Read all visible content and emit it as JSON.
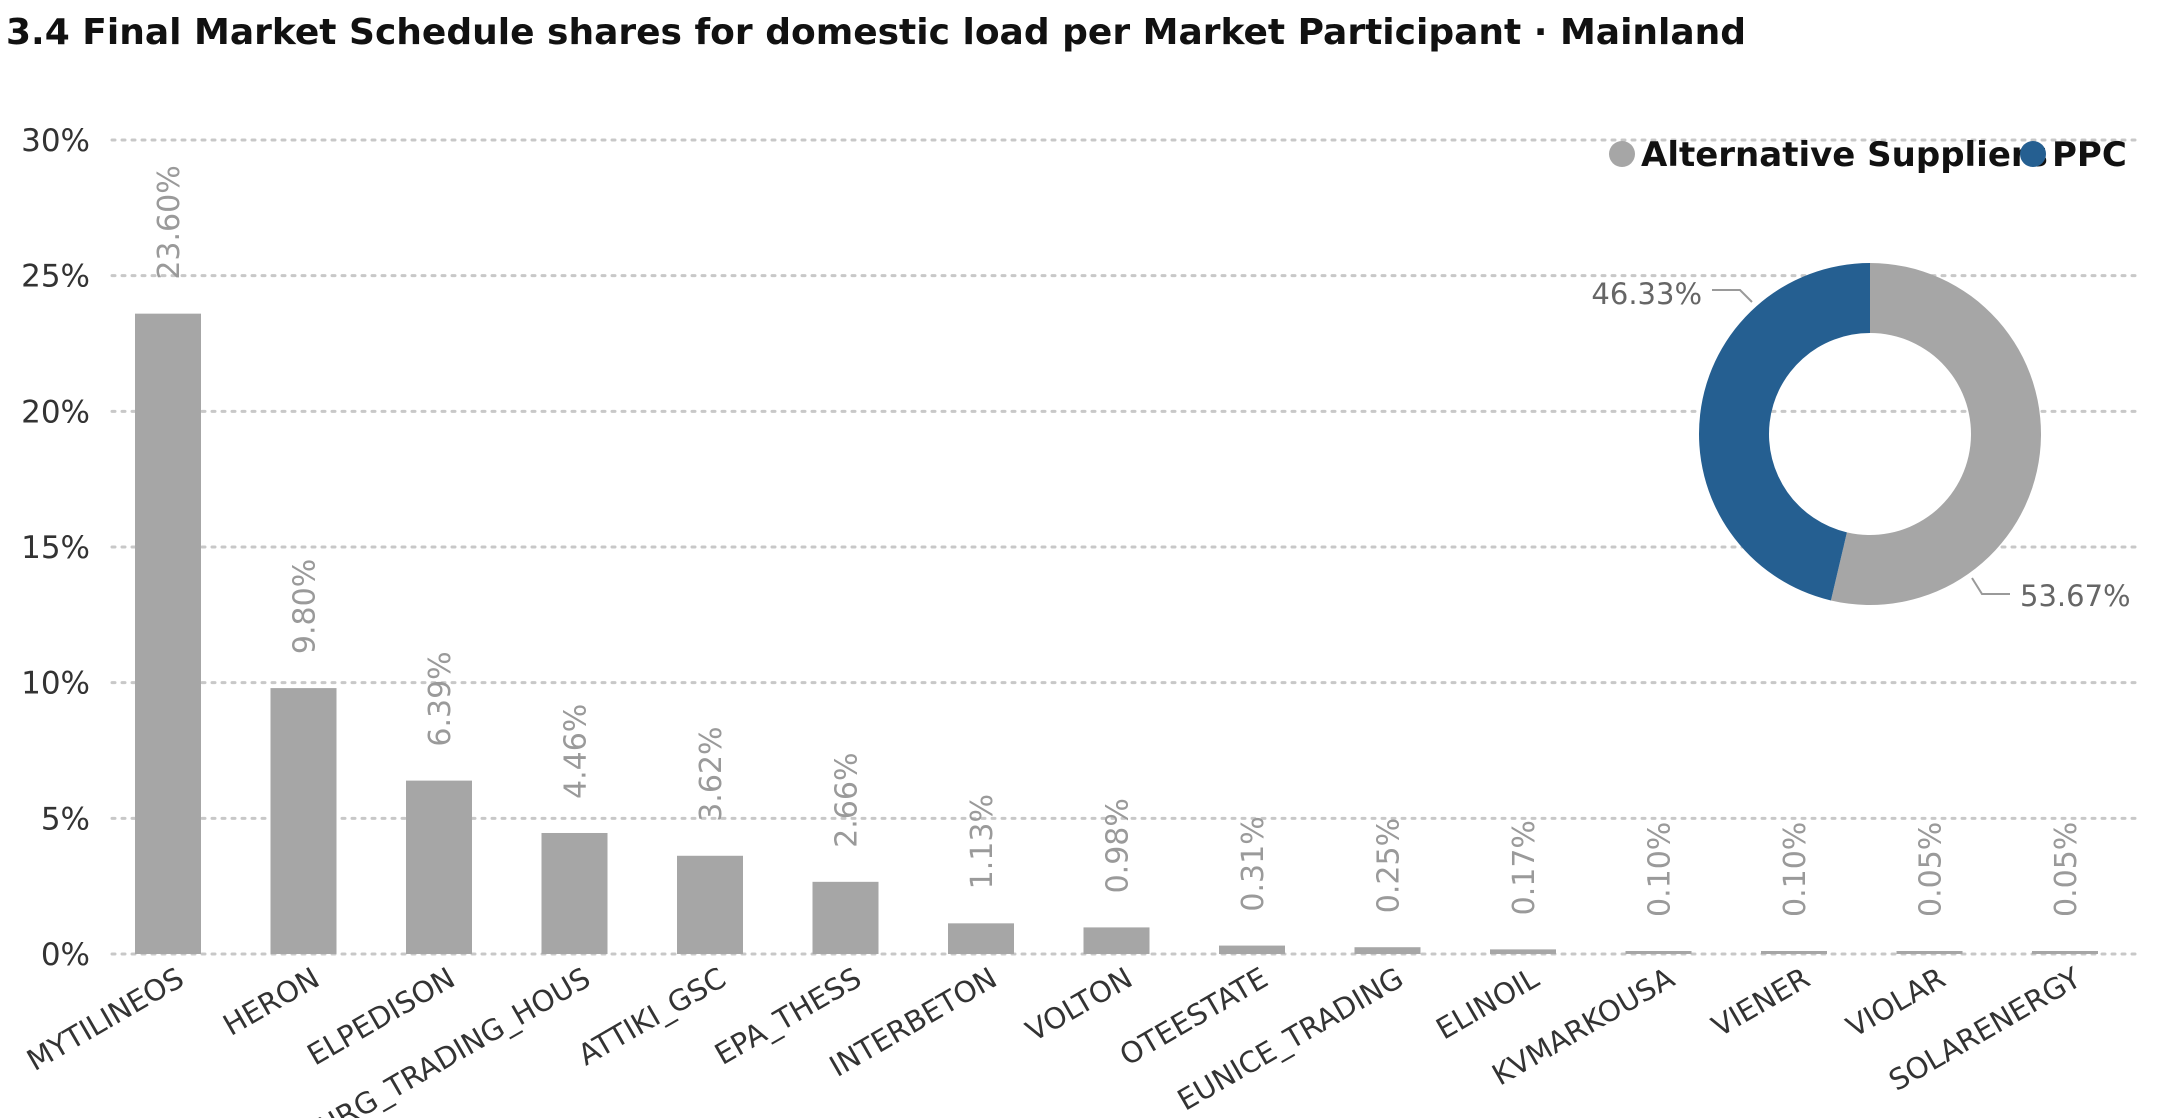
{
  "title": "3.4 Final Market Schedule shares for  domestic load per Market Participant · Mainland",
  "colors": {
    "bar": "#a6a6a6",
    "alternative_suppliers": "#a6a6a6",
    "ppc": "#255f91",
    "grid": "#c8c8c8"
  },
  "chart_data": [
    {
      "type": "bar",
      "categories": [
        "MYTILINEOS",
        "HERON",
        "ELPEDISON",
        "NRG_TRADING_HOUS",
        "ATTIKI_GSC",
        "EPA_THESS",
        "INTERBETON",
        "VOLTON",
        "OTEESTATE",
        "EUNICE_TRADING",
        "ELINOIL",
        "KVMARKOUSA",
        "VIENER",
        "VIOLAR",
        "SOLARENERGY"
      ],
      "values": [
        23.6,
        9.8,
        6.39,
        4.46,
        3.62,
        2.66,
        1.13,
        0.98,
        0.31,
        0.25,
        0.17,
        0.1,
        0.1,
        0.05,
        0.05
      ],
      "data_labels": [
        "23.60%",
        "9.80%",
        "6.39%",
        "4.46%",
        "3.62%",
        "2.66%",
        "1.13%",
        "0.98%",
        "0.31%",
        "0.25%",
        "0.17%",
        "0.10%",
        "0.10%",
        "0.05%",
        "0.05%"
      ],
      "ylim": [
        0,
        30
      ],
      "yticks": [
        0,
        5,
        10,
        15,
        20,
        25,
        30
      ],
      "ytick_labels": [
        "0%",
        "5%",
        "10%",
        "15%",
        "20%",
        "25%",
        "30%"
      ],
      "grid": true
    },
    {
      "type": "pie",
      "donut": true,
      "slices": [
        {
          "name": "Alternative Suppliers",
          "value": 53.67,
          "label": "53.67%"
        },
        {
          "name": "PPC",
          "value": 46.33,
          "label": "46.33%"
        }
      ],
      "legend": [
        "Alternative Suppliers",
        "PPC"
      ],
      "legend_position": "top-right"
    }
  ]
}
